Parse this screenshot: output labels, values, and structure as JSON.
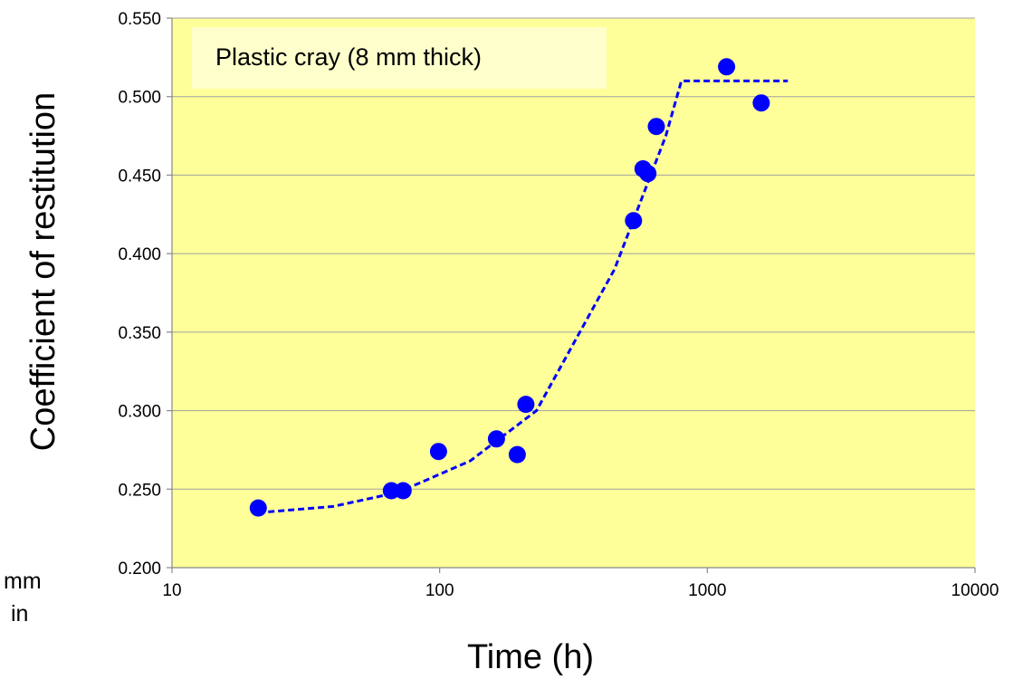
{
  "chart_data": {
    "type": "scatter",
    "title": "",
    "xlabel": "Time (h)",
    "ylabel": "Coefficient of restitution",
    "xscale": "log",
    "xlim": [
      10,
      10000
    ],
    "ylim": [
      0.2,
      0.55
    ],
    "x_ticks": [
      "10",
      "100",
      "1000",
      "10000"
    ],
    "y_ticks": [
      "0.200",
      "0.250",
      "0.300",
      "0.350",
      "0.400",
      "0.450",
      "0.500",
      "0.550"
    ],
    "grid": "horizontal",
    "background_color": "#ffff99",
    "annotation": "Plastic cray (8 mm thick)",
    "points": {
      "color": "#0000ff",
      "x": [
        21,
        66,
        73,
        99,
        163,
        195,
        210,
        530,
        575,
        600,
        645,
        1180,
        1590
      ],
      "y": [
        0.238,
        0.249,
        0.249,
        0.274,
        0.282,
        0.272,
        0.304,
        0.421,
        0.454,
        0.451,
        0.481,
        0.519,
        0.496
      ]
    },
    "trend_line": {
      "style": "dashed",
      "color": "#0000ff",
      "x": [
        21,
        40,
        70,
        130,
        230,
        450,
        700,
        800,
        2000
      ],
      "y": [
        0.235,
        0.239,
        0.248,
        0.268,
        0.3,
        0.39,
        0.475,
        0.51,
        0.51
      ]
    },
    "edge_text": [
      "mm",
      "in"
    ]
  }
}
